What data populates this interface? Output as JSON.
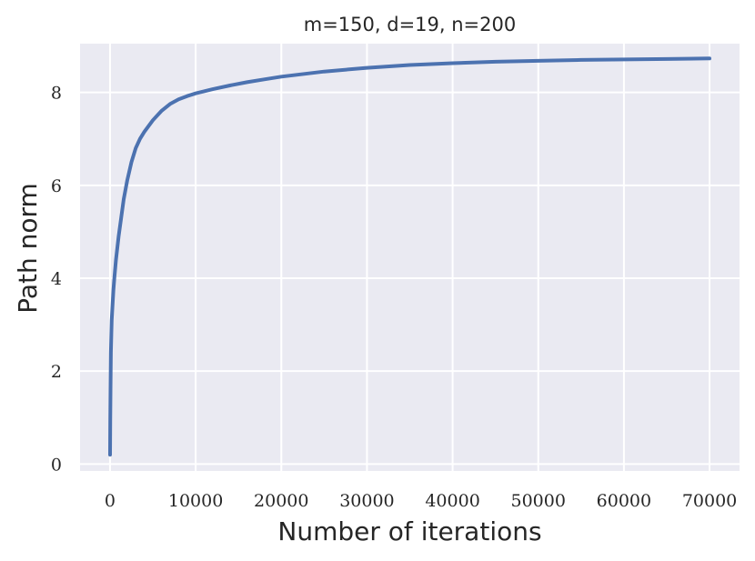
{
  "chart_data": {
    "type": "line",
    "title": "m=150, d=19, n=200",
    "xlabel": "Number of iterations",
    "ylabel": "Path norm",
    "xlim": [
      -3500,
      73500
    ],
    "ylim": [
      -0.15,
      9.05
    ],
    "xticks": [
      0,
      10000,
      20000,
      30000,
      40000,
      50000,
      60000,
      70000
    ],
    "xtick_labels": [
      "0",
      "10000",
      "20000",
      "30000",
      "40000",
      "50000",
      "60000",
      "70000"
    ],
    "yticks": [
      0,
      2,
      4,
      6,
      8
    ],
    "ytick_labels": [
      "0",
      "2",
      "4",
      "6",
      "8"
    ],
    "grid": true,
    "background": "#eaeaf2",
    "grid_color": "#ffffff",
    "series": [
      {
        "color": "#4c72b0",
        "x": [
          0,
          30,
          60,
          100,
          150,
          200,
          300,
          400,
          500,
          700,
          1000,
          1300,
          1600,
          2000,
          2500,
          3000,
          3500,
          4000,
          5000,
          6000,
          7000,
          8000,
          9000,
          10000,
          12000,
          14000,
          16000,
          18000,
          20000,
          25000,
          30000,
          35000,
          40000,
          45000,
          50000,
          55000,
          60000,
          65000,
          70000
        ],
        "y": [
          0.2,
          0.9,
          1.6,
          2.4,
          2.8,
          3.1,
          3.45,
          3.75,
          4.0,
          4.4,
          4.9,
          5.3,
          5.7,
          6.1,
          6.5,
          6.8,
          7.0,
          7.15,
          7.4,
          7.6,
          7.75,
          7.85,
          7.92,
          7.98,
          8.07,
          8.15,
          8.22,
          8.28,
          8.34,
          8.45,
          8.53,
          8.59,
          8.63,
          8.66,
          8.68,
          8.7,
          8.71,
          8.72,
          8.73
        ]
      }
    ]
  }
}
